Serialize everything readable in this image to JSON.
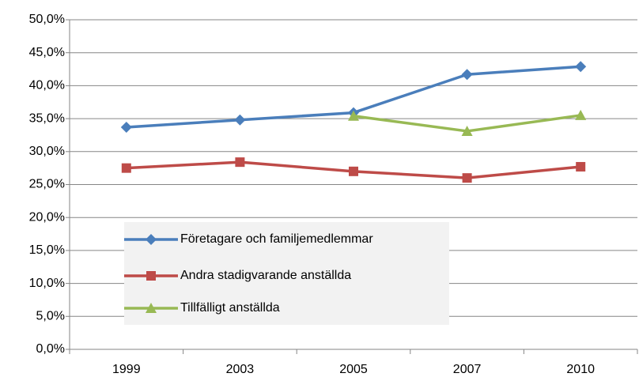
{
  "chart_data": {
    "type": "line",
    "categories": [
      "1999",
      "2003",
      "2005",
      "2007",
      "2010"
    ],
    "series": [
      {
        "name": "Företagare och familjemedlemmar",
        "color": "#4a7ebb",
        "marker": "diamond",
        "values": [
          33.7,
          34.8,
          35.9,
          41.7,
          42.9
        ]
      },
      {
        "name": "Andra stadigvarande anställda",
        "color": "#be4b48",
        "marker": "square",
        "values": [
          27.5,
          28.4,
          27.0,
          26.0,
          27.7
        ]
      },
      {
        "name": "Tillfälligt anställda",
        "color": "#98b954",
        "marker": "triangle",
        "values": [
          null,
          null,
          35.4,
          33.1,
          35.5
        ]
      }
    ],
    "ylim": [
      0,
      50
    ],
    "yticks": [
      {
        "value": 0,
        "label": "0,0%"
      },
      {
        "value": 5,
        "label": "5,0%"
      },
      {
        "value": 10,
        "label": "10,0%"
      },
      {
        "value": 15,
        "label": "15,0%"
      },
      {
        "value": 20,
        "label": "20,0%"
      },
      {
        "value": 25,
        "label": "25,0%"
      },
      {
        "value": 30,
        "label": "30,0%"
      },
      {
        "value": 35,
        "label": "35,0%"
      },
      {
        "value": 40,
        "label": "40,0%"
      },
      {
        "value": 45,
        "label": "45,0%"
      },
      {
        "value": 50,
        "label": "50,0%"
      }
    ],
    "grid": true,
    "legend": "lower left"
  }
}
